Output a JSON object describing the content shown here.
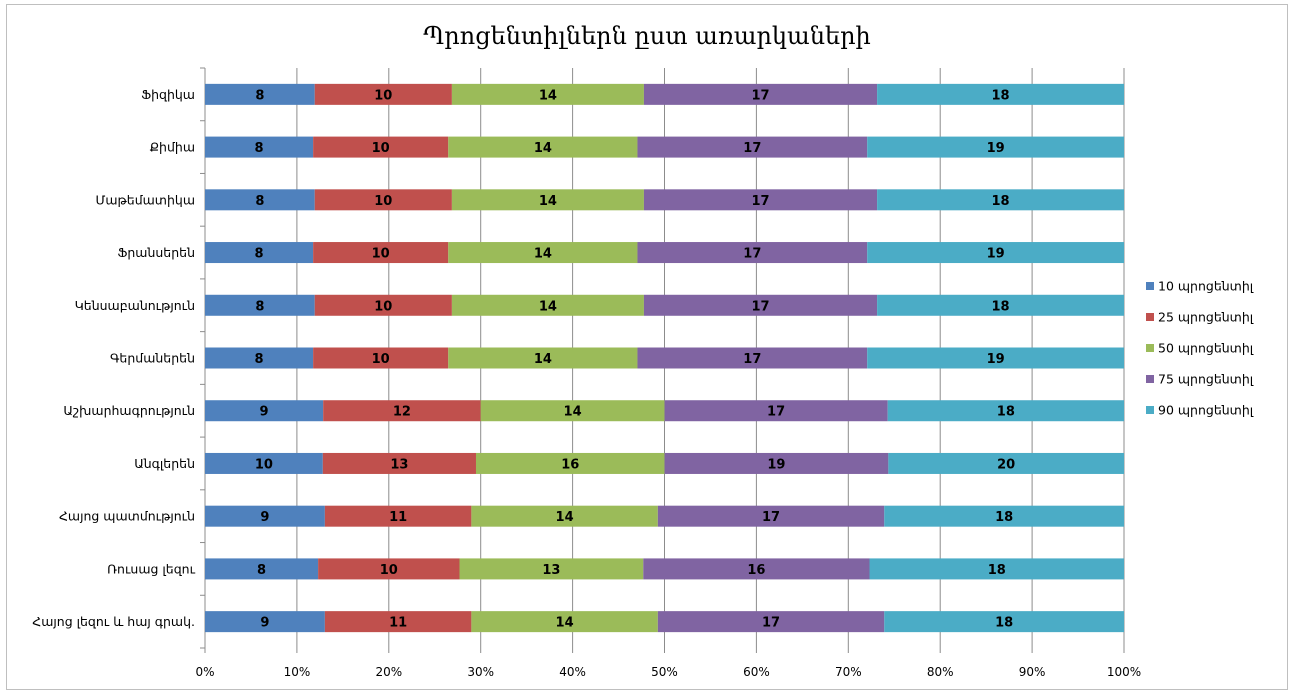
{
  "chart_data": {
    "type": "bar",
    "orientation": "horizontal",
    "stacking": "percent",
    "title": "Պրոցենտիլներն ըստ առարկաների",
    "categories": [
      "Ֆիզիկա",
      "Քիմիա",
      "Մաթեմատիկա",
      "Ֆրանսերեն",
      "Կենսաբանություն",
      "Գերմաներեն",
      "Աշխարհագրություն",
      "Անգլերեն",
      "Հայոց պատմություն",
      "Ռուսաց լեզու",
      "Հայոց լեզու և հայ գրակ."
    ],
    "series": [
      {
        "name": "10 պրոցենտիլ",
        "color": "#4f81bd",
        "values": [
          8,
          8,
          8,
          8,
          8,
          8,
          9,
          10,
          9,
          8,
          9
        ]
      },
      {
        "name": "25 պրոցենտիլ",
        "color": "#c0504d",
        "values": [
          10,
          10,
          10,
          10,
          10,
          10,
          12,
          13,
          11,
          10,
          11
        ]
      },
      {
        "name": "50 պրոցենտիլ",
        "color": "#9bbb59",
        "values": [
          14,
          14,
          14,
          14,
          14,
          14,
          14,
          16,
          14,
          13,
          14
        ]
      },
      {
        "name": "75 պրոցենտիլ",
        "color": "#8064a2",
        "values": [
          17,
          17,
          17,
          17,
          17,
          17,
          17,
          19,
          17,
          16,
          17
        ]
      },
      {
        "name": "90 պրոցենտիլ",
        "color": "#4bacc6",
        "values": [
          18,
          19,
          18,
          19,
          18,
          19,
          18,
          20,
          18,
          18,
          18
        ]
      }
    ],
    "x_ticks": [
      "0%",
      "10%",
      "20%",
      "30%",
      "40%",
      "50%",
      "60%",
      "70%",
      "80%",
      "90%",
      "100%"
    ],
    "xlim": [
      0,
      100
    ],
    "grid": "vertical",
    "legend": "right",
    "xlabel": "",
    "ylabel": ""
  }
}
